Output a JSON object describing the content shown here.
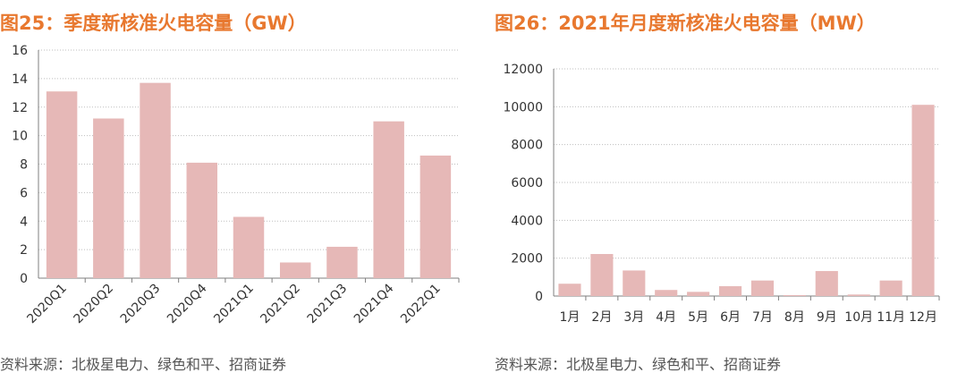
{
  "colors": {
    "title": "#e8782f",
    "bar": "#e6b8b7",
    "grid": "#bfbfbf",
    "axis": "#7f7f7f",
    "text": "#333333"
  },
  "charts": [
    {
      "title": "图25：季度新核准火电容量（GW）",
      "source": "资料来源：北极星电力、绿色和平、招商证券"
    },
    {
      "title": "图26：2021年月度新核准火电容量（MW）",
      "source": "资料来源：北极星电力、绿色和平、招商证券"
    }
  ],
  "chart_data": [
    {
      "type": "bar",
      "title": "图25：季度新核准火电容量（GW）",
      "categories": [
        "2020Q1",
        "2020Q2",
        "2020Q3",
        "2020Q4",
        "2021Q1",
        "2021Q2",
        "2021Q3",
        "2021Q4",
        "2022Q1"
      ],
      "values": [
        13.1,
        11.2,
        13.7,
        8.1,
        4.3,
        1.1,
        2.2,
        11.0,
        8.6
      ],
      "yticks": [
        0,
        2,
        4,
        6,
        8,
        10,
        12,
        14,
        16
      ],
      "ylim": [
        0,
        16
      ],
      "xlabel": "",
      "ylabel": "",
      "grid": true,
      "legend": "none",
      "xtick_rotation": "diagonal"
    },
    {
      "type": "bar",
      "title": "图26：2021年月度新核准火电容量（MW）",
      "categories": [
        "1月",
        "2月",
        "3月",
        "4月",
        "5月",
        "6月",
        "7月",
        "8月",
        "9月",
        "10月",
        "11月",
        "12月"
      ],
      "values": [
        650,
        2220,
        1350,
        320,
        220,
        520,
        820,
        50,
        1320,
        80,
        820,
        10100
      ],
      "yticks": [
        0,
        2000,
        4000,
        6000,
        8000,
        10000,
        12000
      ],
      "ylim": [
        0,
        12000
      ],
      "xlabel": "",
      "ylabel": "",
      "grid": true,
      "legend": "none",
      "xtick_rotation": "horizontal"
    }
  ]
}
